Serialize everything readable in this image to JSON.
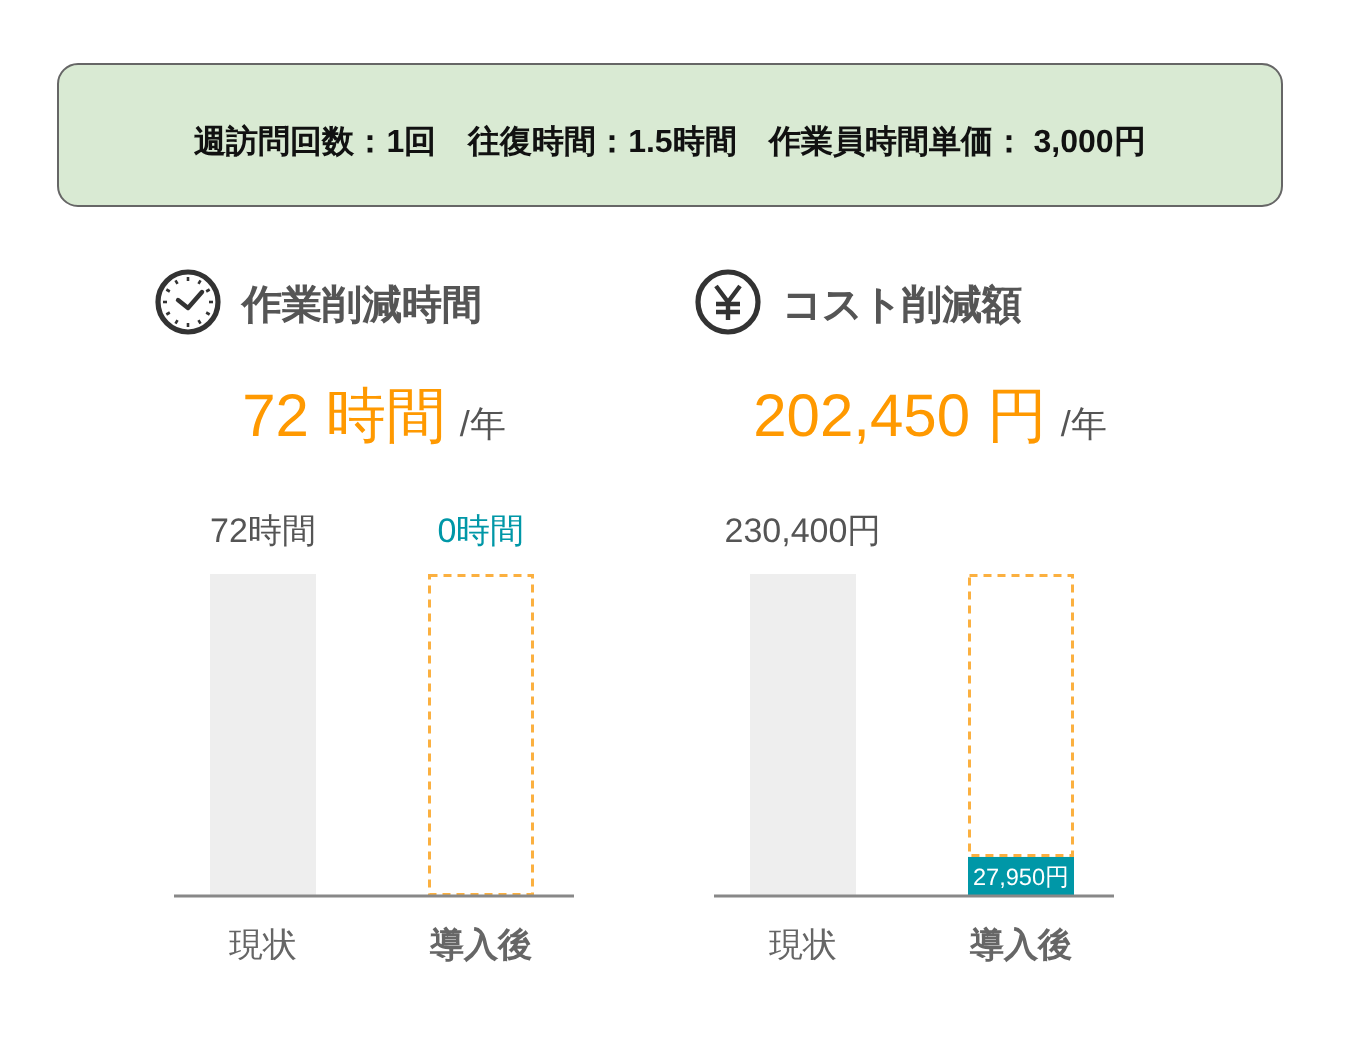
{
  "chart_data": [
    {
      "type": "other",
      "title": "週訪問回数：1回　往復時間：1.5時間　作業員時間単価： 3,000円"
    },
    {
      "type": "bar",
      "stacked": true,
      "tick_labels": "x",
      "title": "作業削減時間",
      "subtitle": "72 時間",
      "annotations": [
        "/年"
      ],
      "categories": [
        "現状",
        "導入後"
      ],
      "series": [
        {
          "color": "#eeeeee",
          "values": [
            72,
            null
          ],
          "value_labels": [
            "72時間",
            null
          ]
        },
        {
          "color": "#0097a7",
          "values": [
            null,
            0
          ],
          "value_labels": [
            null,
            "0時間"
          ]
        },
        {
          "color": "#fbb040",
          "values": [
            null,
            72
          ],
          "line_style": "dashed"
        }
      ]
    },
    {
      "type": "bar",
      "stacked": true,
      "tick_labels": "x",
      "title": "コスト削減額",
      "subtitle": "202,450 円",
      "annotations": [
        "/年"
      ],
      "categories": [
        "現状",
        "導入後"
      ],
      "series": [
        {
          "color": "#eeeeee",
          "values": [
            230400,
            null
          ],
          "value_labels": [
            "230,400円",
            null
          ]
        },
        {
          "color": "#0097a7",
          "values": [
            null,
            27950
          ],
          "value_labels": [
            null,
            "27,950円"
          ]
        },
        {
          "color": "#fbb040",
          "values": [
            null,
            202450
          ],
          "line_style": "dashed"
        }
      ]
    }
  ]
}
